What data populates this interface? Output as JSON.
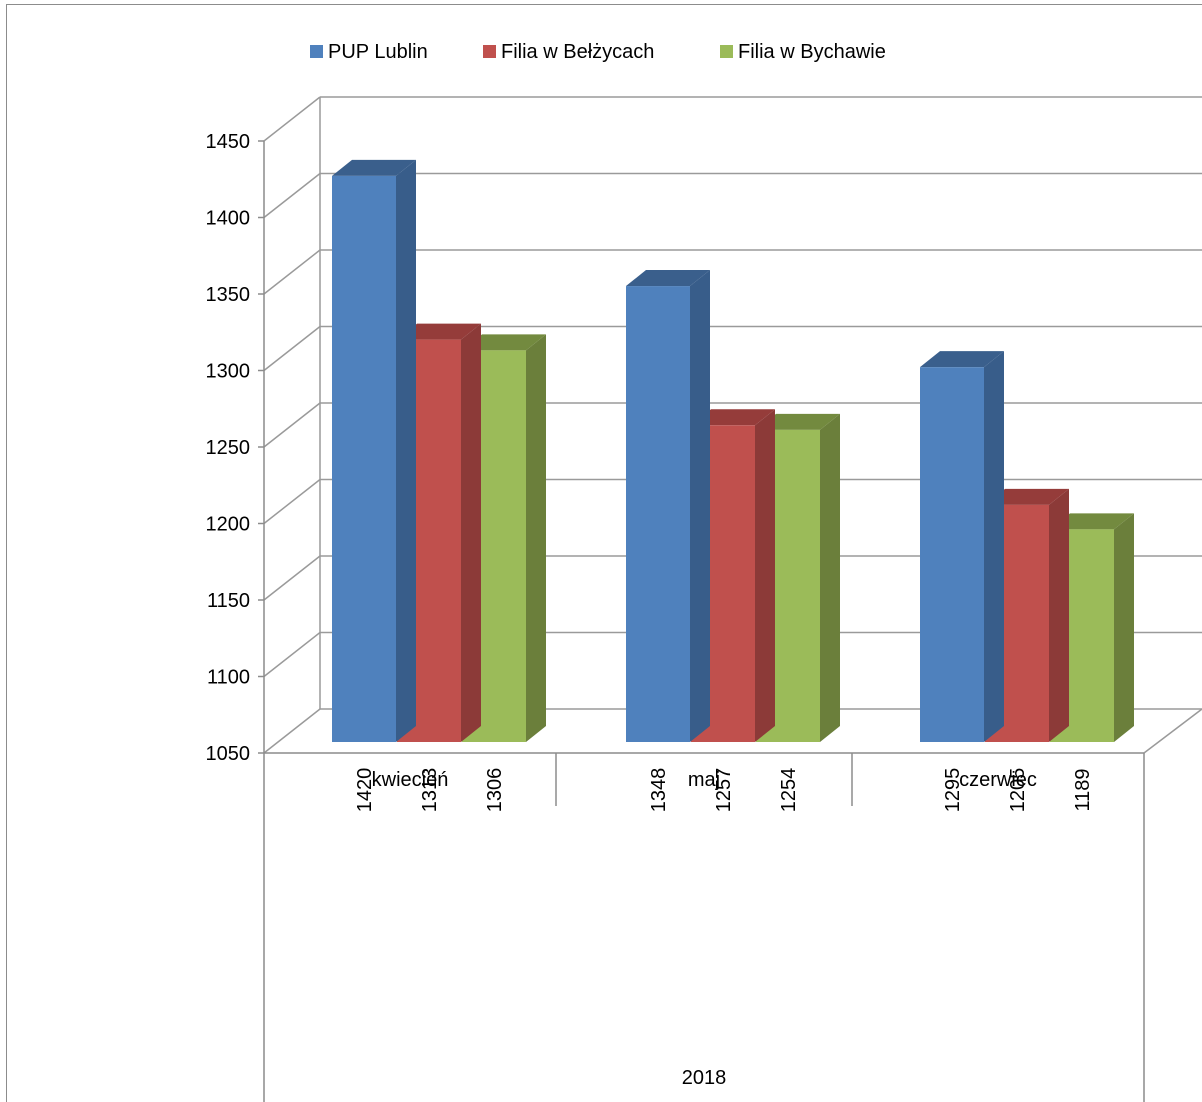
{
  "chart_data": {
    "type": "bar",
    "style": "3d-clustered-column",
    "categories": [
      "kwiecień",
      "maj",
      "czerwiec"
    ],
    "group_label": "2018",
    "series": [
      {
        "name": "PUP Lublin",
        "values": [
          1420,
          1348,
          1295
        ],
        "color": "#4f81bd",
        "side_color": "#385d8a",
        "top_color": "#3a5f8c"
      },
      {
        "name": "Filia w Bełżycach",
        "values": [
          1313,
          1257,
          1205
        ],
        "color": "#c0504d",
        "side_color": "#8c3a38",
        "top_color": "#953c3a"
      },
      {
        "name": "Filia w Bychawie",
        "values": [
          1306,
          1254,
          1189
        ],
        "color": "#9bbb59",
        "side_color": "#6b7f3b",
        "top_color": "#738a3f"
      }
    ],
    "ylim": [
      1050,
      1450
    ],
    "yticks": [
      1050,
      1100,
      1150,
      1200,
      1250,
      1300,
      1350,
      1400,
      1450
    ],
    "grid": true,
    "legend_position": "top",
    "data_labels": "inside-rotated",
    "title": "",
    "xlabel": "",
    "ylabel": ""
  }
}
